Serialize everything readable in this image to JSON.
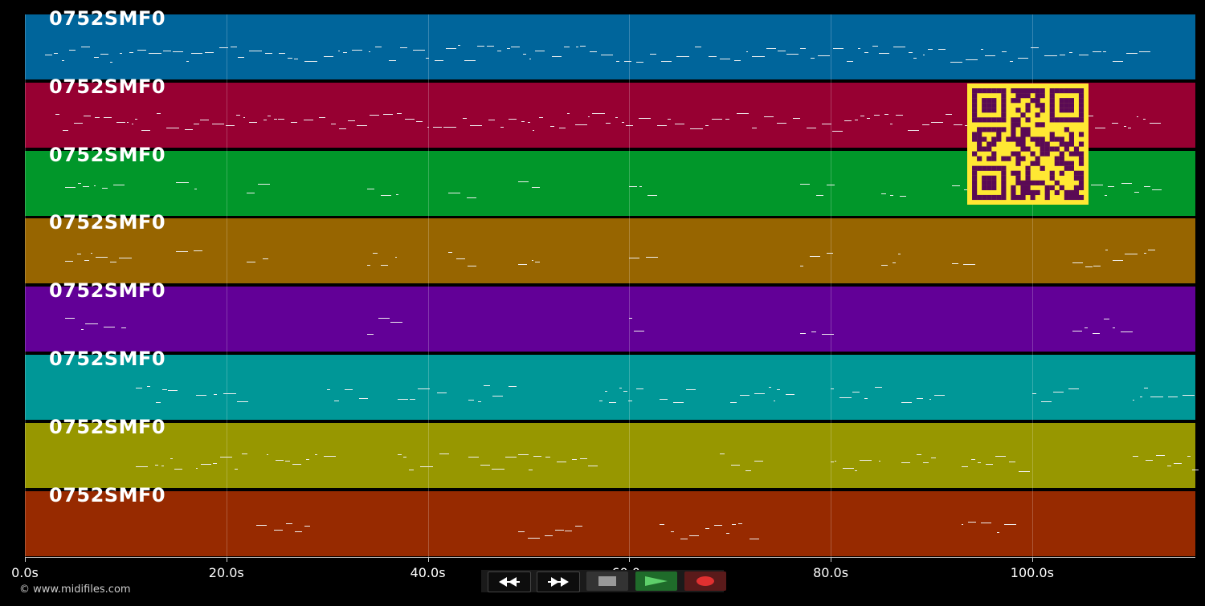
{
  "tracks": [
    {
      "name": "0752SMF0",
      "color": "#00659b"
    },
    {
      "name": "0752SMF0",
      "color": "#970032"
    },
    {
      "name": "0752SMF0",
      "color": "#01972a"
    },
    {
      "name": "0752SMF0",
      "color": "#976500"
    },
    {
      "name": "0752SMF0",
      "color": "#620097"
    },
    {
      "name": "0752SMF0",
      "color": "#009797"
    },
    {
      "name": "0752SMF0",
      "color": "#979700"
    },
    {
      "name": "0752SMF0",
      "color": "#972a00"
    }
  ],
  "timeline": {
    "ticks": [
      "0.0s",
      "20.0s",
      "40.0s",
      "60.0s",
      "80.0s",
      "100.0s"
    ],
    "tick_seconds": [
      0,
      20,
      40,
      60,
      80,
      100
    ],
    "duration_seconds": 116.2
  },
  "copyright": "© www.midifiles.com",
  "transport": {
    "icons": [
      "rewind-icon",
      "fast-forward-icon",
      "stop-icon",
      "play-icon",
      "record-icon"
    ],
    "colors": {
      "play": "#1f6b2a",
      "record": "#5a1a1a",
      "play_glyph": "#5ed06a",
      "record_glyph": "#e03030"
    }
  },
  "qr": {
    "fg": "#5a0a55",
    "bg": "#ffe833"
  }
}
